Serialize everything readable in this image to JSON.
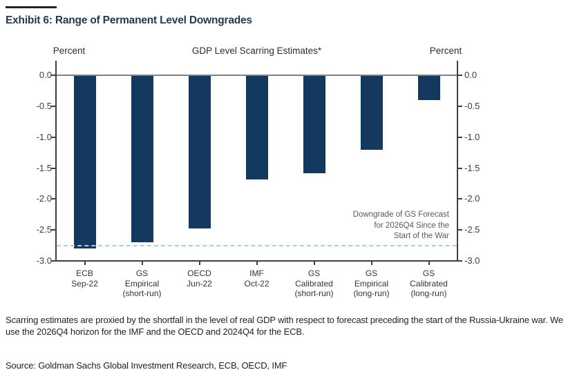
{
  "exhibit": {
    "title": "Exhibit 6: Range of Permanent Level Downgrades"
  },
  "chart_data": {
    "type": "bar",
    "title": "GDP Level Scarring Estimates*",
    "left_axis_label": "Percent",
    "right_axis_label": "Percent",
    "categories": [
      [
        "ECB",
        "Sep-22"
      ],
      [
        "GS",
        "Empirical",
        "(short-run)"
      ],
      [
        "OECD",
        "Jun-22"
      ],
      [
        "IMF",
        "Oct-22"
      ],
      [
        "GS",
        "Calibrated",
        "(short-run)"
      ],
      [
        "GS",
        "Empirical",
        "(long-run)"
      ],
      [
        "GS",
        "Calibrated",
        "(long-run)"
      ]
    ],
    "values": [
      -2.8,
      -2.7,
      -2.48,
      -1.68,
      -1.58,
      -1.2,
      -0.4
    ],
    "ylim": [
      -3.0,
      0.0
    ],
    "yticks": [
      0.0,
      -0.5,
      -1.0,
      -1.5,
      -2.0,
      -2.5,
      -3.0
    ],
    "ytick_labels": [
      "0.0",
      "-0.5",
      "-1.0",
      "-1.5",
      "-2.0",
      "-2.5",
      "-3.0"
    ],
    "grid": false,
    "legend": "none",
    "bar_color": "#133A5E",
    "reference_line": {
      "value": -2.75,
      "style": "dashed",
      "color": "#A7CCE6",
      "label": [
        "Downgrade of GS Forecast",
        "for 2026Q4 Since the",
        "Start of the War"
      ]
    }
  },
  "footnote": "Scarring estimates are proxied by the shortfall in the level of real GDP with respect to forecast preceding the start of the Russia-Ukraine war. We use the 2026Q4 horizon for the IMF and the OECD and 2024Q4 for the ECB.",
  "source": "Source: Goldman Sachs Global Investment Research, ECB, OECD, IMF",
  "colors": {
    "bar": "#133A5E",
    "axis": "#3F3F3F",
    "zero_line": "#808080",
    "reference_line": "#A7CCE6",
    "title": "#24384E"
  }
}
